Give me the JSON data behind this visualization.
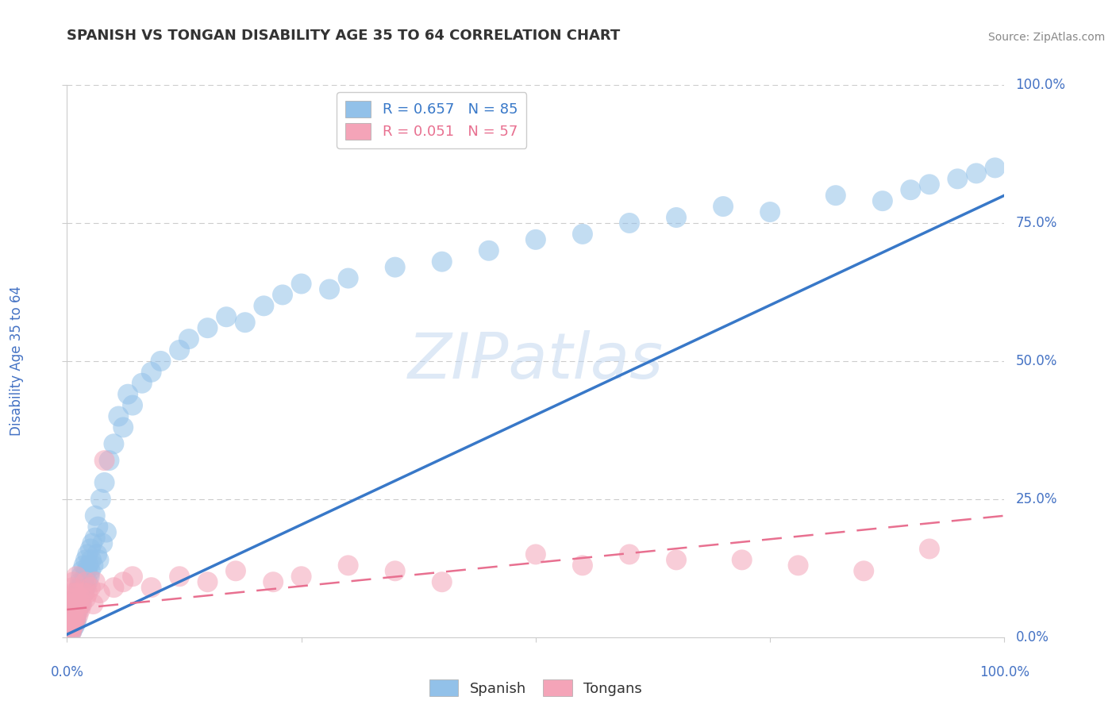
{
  "title": "SPANISH VS TONGAN DISABILITY AGE 35 TO 64 CORRELATION CHART",
  "source_text": "Source: ZipAtlas.com",
  "ylabel": "Disability Age 35 to 64",
  "xlim": [
    0.0,
    1.0
  ],
  "ylim": [
    0.0,
    1.0
  ],
  "xticks": [
    0.0,
    0.25,
    0.5,
    0.75,
    1.0
  ],
  "yticks": [
    0.0,
    0.25,
    0.5,
    0.75,
    1.0
  ],
  "xtick_labels": [
    "0.0%",
    "",
    "",
    "",
    "100.0%"
  ],
  "ytick_labels_right": [
    "0.0%",
    "25.0%",
    "50.0%",
    "75.0%",
    "100.0%"
  ],
  "spanish_R": 0.657,
  "spanish_N": 85,
  "tongan_R": 0.051,
  "tongan_N": 57,
  "spanish_color": "#92C1E9",
  "tongan_color": "#F4A4B8",
  "spanish_line_color": "#3878C8",
  "tongan_line_color": "#E87090",
  "spanish_line_x0": 0.0,
  "spanish_line_y0": 0.005,
  "spanish_line_x1": 1.0,
  "spanish_line_y1": 0.8,
  "tongan_line_x0": 0.0,
  "tongan_line_y0": 0.05,
  "tongan_line_x1": 1.0,
  "tongan_line_y1": 0.22,
  "title_color": "#333333",
  "tick_label_color": "#4472C4",
  "watermark_text": "ZIPatlas",
  "spanish_x": [
    0.005,
    0.005,
    0.006,
    0.007,
    0.008,
    0.008,
    0.008,
    0.009,
    0.009,
    0.01,
    0.01,
    0.01,
    0.01,
    0.01,
    0.012,
    0.012,
    0.013,
    0.013,
    0.014,
    0.014,
    0.015,
    0.015,
    0.015,
    0.016,
    0.016,
    0.017,
    0.018,
    0.018,
    0.019,
    0.02,
    0.02,
    0.021,
    0.022,
    0.022,
    0.023,
    0.024,
    0.025,
    0.025,
    0.026,
    0.027,
    0.028,
    0.03,
    0.03,
    0.032,
    0.033,
    0.034,
    0.036,
    0.038,
    0.04,
    0.042,
    0.045,
    0.05,
    0.055,
    0.06,
    0.065,
    0.07,
    0.08,
    0.09,
    0.1,
    0.12,
    0.13,
    0.15,
    0.17,
    0.19,
    0.21,
    0.23,
    0.25,
    0.28,
    0.3,
    0.35,
    0.4,
    0.45,
    0.5,
    0.55,
    0.6,
    0.65,
    0.7,
    0.75,
    0.82,
    0.87,
    0.9,
    0.92,
    0.95,
    0.97,
    0.99
  ],
  "spanish_y": [
    0.01,
    0.02,
    0.015,
    0.025,
    0.02,
    0.03,
    0.035,
    0.025,
    0.04,
    0.03,
    0.05,
    0.06,
    0.04,
    0.07,
    0.05,
    0.08,
    0.06,
    0.09,
    0.07,
    0.1,
    0.08,
    0.11,
    0.06,
    0.09,
    0.12,
    0.1,
    0.13,
    0.08,
    0.11,
    0.14,
    0.09,
    0.12,
    0.15,
    0.1,
    0.13,
    0.11,
    0.16,
    0.12,
    0.14,
    0.17,
    0.13,
    0.18,
    0.22,
    0.15,
    0.2,
    0.14,
    0.25,
    0.17,
    0.28,
    0.19,
    0.32,
    0.35,
    0.4,
    0.38,
    0.44,
    0.42,
    0.46,
    0.48,
    0.5,
    0.52,
    0.54,
    0.56,
    0.58,
    0.57,
    0.6,
    0.62,
    0.64,
    0.63,
    0.65,
    0.67,
    0.68,
    0.7,
    0.72,
    0.73,
    0.75,
    0.76,
    0.78,
    0.77,
    0.8,
    0.79,
    0.81,
    0.82,
    0.83,
    0.84,
    0.85
  ],
  "tongan_x": [
    0.003,
    0.003,
    0.004,
    0.004,
    0.004,
    0.005,
    0.005,
    0.005,
    0.006,
    0.006,
    0.006,
    0.007,
    0.007,
    0.007,
    0.008,
    0.008,
    0.009,
    0.009,
    0.01,
    0.01,
    0.01,
    0.011,
    0.012,
    0.012,
    0.013,
    0.014,
    0.015,
    0.016,
    0.018,
    0.02,
    0.02,
    0.022,
    0.025,
    0.028,
    0.03,
    0.035,
    0.04,
    0.05,
    0.06,
    0.07,
    0.09,
    0.12,
    0.15,
    0.18,
    0.22,
    0.25,
    0.3,
    0.35,
    0.4,
    0.5,
    0.55,
    0.6,
    0.65,
    0.72,
    0.78,
    0.85,
    0.92
  ],
  "tongan_y": [
    0.02,
    0.04,
    0.01,
    0.03,
    0.06,
    0.01,
    0.05,
    0.08,
    0.02,
    0.06,
    0.09,
    0.02,
    0.05,
    0.1,
    0.03,
    0.07,
    0.03,
    0.08,
    0.04,
    0.07,
    0.11,
    0.05,
    0.04,
    0.08,
    0.06,
    0.05,
    0.07,
    0.06,
    0.08,
    0.07,
    0.1,
    0.08,
    0.09,
    0.06,
    0.1,
    0.08,
    0.32,
    0.09,
    0.1,
    0.11,
    0.09,
    0.11,
    0.1,
    0.12,
    0.1,
    0.11,
    0.13,
    0.12,
    0.1,
    0.15,
    0.13,
    0.15,
    0.14,
    0.14,
    0.13,
    0.12,
    0.16
  ]
}
